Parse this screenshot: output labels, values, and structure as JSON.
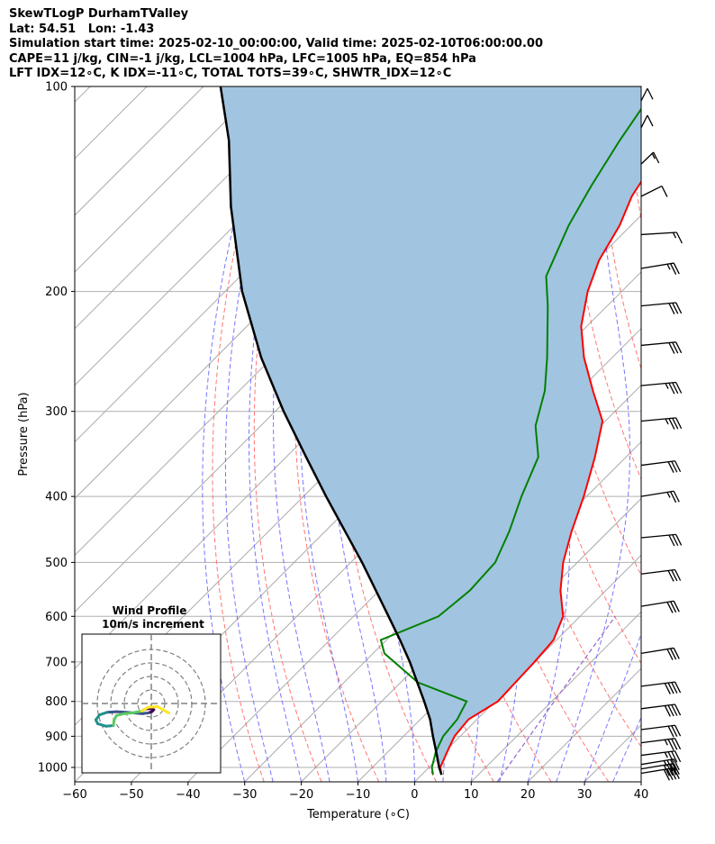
{
  "header": {
    "title": "SkewTLogP DurhamTValley",
    "location": "Lat: 54.51   Lon: -1.43",
    "times": "Simulation start time: 2025-02-10_00:00:00, Valid time: 2025-02-10T06:00:00.00",
    "indices1": "CAPE=11 j/kg, CIN=-1 j/kg, LCL=1004 hPa, LFC=1005 hPa, EQ=854 hPa",
    "indices2": "LFT IDX=12∘C, K IDX=-11∘C, TOTAL TOTS=39∘C, SHWTR_IDX=12∘C"
  },
  "chart_data": {
    "type": "line",
    "title": "",
    "xlabel": "Temperature (∘C)",
    "ylabel": "Pressure (hPa)",
    "xlim": [
      -60,
      40
    ],
    "ylim": [
      1050,
      100
    ],
    "y_scale": "log",
    "skew": true,
    "x_ticks": [
      "−60",
      "−50",
      "−40",
      "−30",
      "−20",
      "−10",
      "0",
      "10",
      "20",
      "30",
      "40"
    ],
    "y_ticks": [
      "100",
      "200",
      "300",
      "400",
      "500",
      "600",
      "700",
      "800",
      "900",
      "1000"
    ],
    "grid": true,
    "colors": {
      "temperature": "#ff0000",
      "dewpoint": "#008000",
      "parcel": "#000000",
      "cape_fill": "#a1c4e0",
      "dry_adiabats": "#ff6666",
      "moist_adiabats": "#6666ff",
      "isotherms": "#aaaaaa",
      "mixing_ratio": "#9966cc"
    },
    "series": [
      {
        "role": "temperature",
        "points": [
          [
            3.5,
            1025
          ],
          [
            2.0,
            1000
          ],
          [
            0.5,
            950
          ],
          [
            -1.0,
            900
          ],
          [
            -1.5,
            850
          ],
          [
            0.5,
            800
          ],
          [
            0.0,
            700
          ],
          [
            -0.5,
            650
          ],
          [
            -3.0,
            600
          ],
          [
            -8.0,
            550
          ],
          [
            -12.5,
            500
          ],
          [
            -16.5,
            450
          ],
          [
            -20.5,
            400
          ],
          [
            -25.5,
            350
          ],
          [
            -30.5,
            310
          ],
          [
            -37.5,
            280
          ],
          [
            -45.0,
            250
          ],
          [
            -51.0,
            225
          ],
          [
            -56.0,
            200
          ],
          [
            -59.5,
            180
          ],
          [
            -62.0,
            160
          ],
          [
            -65.0,
            145
          ],
          [
            -67.0,
            130
          ],
          [
            -69.0,
            115
          ],
          [
            -70.0,
            105
          ],
          [
            -70.5,
            100
          ]
        ]
      },
      {
        "role": "dewpoint",
        "points": [
          [
            2.0,
            1025
          ],
          [
            0.5,
            1000
          ],
          [
            -1.5,
            950
          ],
          [
            -3.0,
            900
          ],
          [
            -3.5,
            850
          ],
          [
            -5.0,
            800
          ],
          [
            -17.0,
            750
          ],
          [
            -28.0,
            680
          ],
          [
            -31.0,
            650
          ],
          [
            -25.0,
            600
          ],
          [
            -24.0,
            550
          ],
          [
            -24.5,
            500
          ],
          [
            -27.5,
            450
          ],
          [
            -31.5,
            400
          ],
          [
            -35.5,
            350
          ],
          [
            -41.5,
            315
          ],
          [
            -46.0,
            280
          ],
          [
            -51.5,
            250
          ],
          [
            -60.5,
            210
          ],
          [
            -66.0,
            190
          ],
          [
            -71.0,
            160
          ],
          [
            -74.0,
            140
          ],
          [
            -77.0,
            120
          ],
          [
            -80.0,
            100
          ]
        ]
      },
      {
        "role": "parcel",
        "points": [
          [
            3.5,
            1025
          ],
          [
            1.8,
            1000
          ],
          [
            -1.4,
            950
          ],
          [
            -4.8,
            900
          ],
          [
            -8.3,
            850
          ],
          [
            -12.5,
            800
          ],
          [
            -22.0,
            700
          ],
          [
            -27.6,
            650
          ],
          [
            -33.8,
            600
          ],
          [
            -48.0,
            500
          ],
          [
            -56.5,
            450
          ],
          [
            -66.0,
            400
          ],
          [
            -76.5,
            350
          ],
          [
            -88.5,
            300
          ],
          [
            -102.0,
            250
          ],
          [
            -117.0,
            200
          ],
          [
            -134.0,
            150
          ],
          [
            -146.0,
            120
          ],
          [
            -157.0,
            100
          ]
        ]
      }
    ]
  },
  "hodograph": {
    "title": "Wind Profile",
    "subtitle": "10m/s increment",
    "points": [
      [
        -1.5,
        -1.2
      ],
      [
        -1.0,
        -0.9
      ],
      [
        -0.4,
        -0.8
      ],
      [
        0.2,
        -0.9
      ],
      [
        0.4,
        -1.0
      ],
      [
        0.1,
        -1.3
      ],
      [
        -0.5,
        -1.5
      ],
      [
        -1.5,
        -1.6
      ],
      [
        -2.8,
        -1.5
      ],
      [
        -4.0,
        -1.4
      ],
      [
        -5.5,
        -1.3
      ],
      [
        -7.0,
        -1.4
      ],
      [
        -8.2,
        -1.8
      ],
      [
        -8.8,
        -2.6
      ],
      [
        -8.5,
        -3.2
      ],
      [
        -7.2,
        -3.6
      ],
      [
        -6.0,
        -3.5
      ],
      [
        -5.9,
        -2.6
      ],
      [
        -5.5,
        -1.9
      ],
      [
        -4.2,
        -1.6
      ],
      [
        -3.0,
        -1.5
      ],
      [
        -1.5,
        -1.2
      ],
      [
        -0.5,
        -0.6
      ],
      [
        1.0,
        -0.5
      ],
      [
        2.4,
        -1.3
      ],
      [
        2.8,
        -1.5
      ]
    ]
  },
  "wind_barbs": [
    {
      "p": 1020,
      "dir": 245,
      "speed_kt": 40
    },
    {
      "p": 1005,
      "dir": 245,
      "speed_kt": 40
    },
    {
      "p": 990,
      "dir": 245,
      "speed_kt": 35
    },
    {
      "p": 960,
      "dir": 250,
      "speed_kt": 35
    },
    {
      "p": 920,
      "dir": 250,
      "speed_kt": 35
    },
    {
      "p": 880,
      "dir": 250,
      "speed_kt": 30
    },
    {
      "p": 820,
      "dir": 250,
      "speed_kt": 40
    },
    {
      "p": 760,
      "dir": 250,
      "speed_kt": 40
    },
    {
      "p": 680,
      "dir": 245,
      "speed_kt": 30
    },
    {
      "p": 580,
      "dir": 245,
      "speed_kt": 30
    },
    {
      "p": 520,
      "dir": 250,
      "speed_kt": 30
    },
    {
      "p": 460,
      "dir": 255,
      "speed_kt": 30
    },
    {
      "p": 400,
      "dir": 245,
      "speed_kt": 25
    },
    {
      "p": 360,
      "dir": 250,
      "speed_kt": 30
    },
    {
      "p": 310,
      "dir": 255,
      "speed_kt": 35
    },
    {
      "p": 275,
      "dir": 255,
      "speed_kt": 35
    },
    {
      "p": 240,
      "dir": 255,
      "speed_kt": 30
    },
    {
      "p": 210,
      "dir": 255,
      "speed_kt": 30
    },
    {
      "p": 185,
      "dir": 245,
      "speed_kt": 25
    },
    {
      "p": 165,
      "dir": 260,
      "speed_kt": 15
    },
    {
      "p": 145,
      "dir": 215,
      "speed_kt": 10
    },
    {
      "p": 130,
      "dir": 200,
      "speed_kt": 15
    },
    {
      "p": 115,
      "dir": 190,
      "speed_kt": 10
    },
    {
      "p": 105,
      "dir": 190,
      "speed_kt": 10
    }
  ]
}
